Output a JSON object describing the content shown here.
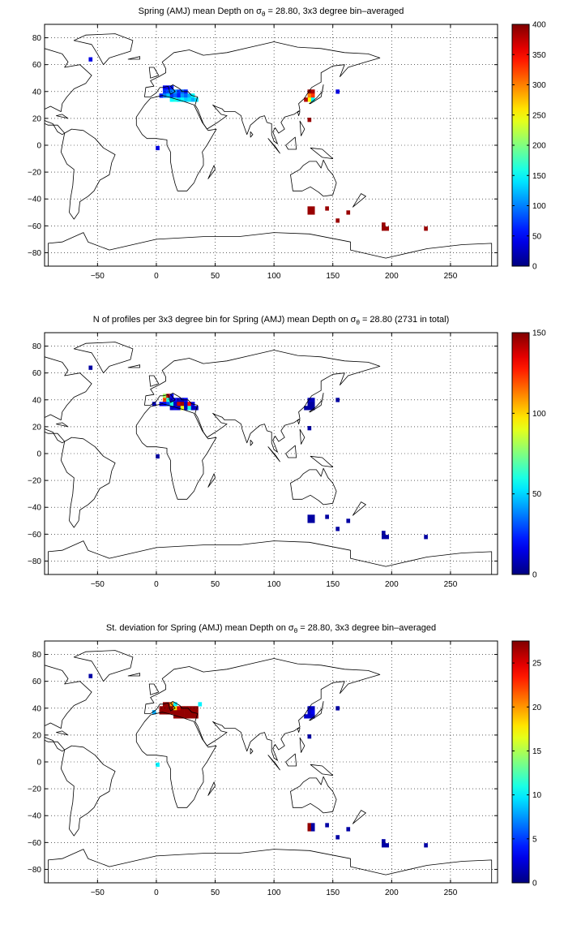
{
  "chart_data": [
    {
      "type": "heatmap",
      "title_parts": [
        "Spring (AMJ) mean Depth on ",
        "σ",
        "θ",
        " = 28.80, 3x3 degree bin–averaged"
      ],
      "xlim": [
        -95,
        290
      ],
      "ylim": [
        -90,
        90
      ],
      "xticks": [
        -50,
        0,
        50,
        100,
        150,
        200,
        250
      ],
      "yticks": [
        80,
        60,
        40,
        20,
        0,
        -20,
        -40,
        -60,
        -80
      ],
      "grid": true,
      "colormap": "jet",
      "colorbar": {
        "min": 0,
        "max": 400,
        "ticks": [
          0,
          50,
          100,
          150,
          200,
          250,
          300,
          350,
          400
        ]
      },
      "cells": [
        {
          "x": -56,
          "y": 64,
          "v": 40
        },
        {
          "x": 1,
          "y": -2,
          "v": 40
        },
        {
          "x": 4,
          "y": 37,
          "v": 60
        },
        {
          "x": 7,
          "y": 43,
          "v": 50
        },
        {
          "x": 7,
          "y": 40,
          "v": 70
        },
        {
          "x": 7,
          "y": 37,
          "v": 100
        },
        {
          "x": 10,
          "y": 43,
          "v": 45
        },
        {
          "x": 10,
          "y": 40,
          "v": 80
        },
        {
          "x": 10,
          "y": 37,
          "v": 130
        },
        {
          "x": 13,
          "y": 43,
          "v": 60
        },
        {
          "x": 13,
          "y": 40,
          "v": 100
        },
        {
          "x": 13,
          "y": 37,
          "v": 70
        },
        {
          "x": 13,
          "y": 34,
          "v": 150
        },
        {
          "x": 16,
          "y": 40,
          "v": 110
        },
        {
          "x": 16,
          "y": 37,
          "v": 90
        },
        {
          "x": 16,
          "y": 34,
          "v": 160
        },
        {
          "x": 19,
          "y": 40,
          "v": 70
        },
        {
          "x": 19,
          "y": 37,
          "v": 60
        },
        {
          "x": 19,
          "y": 34,
          "v": 140
        },
        {
          "x": 22,
          "y": 40,
          "v": 90
        },
        {
          "x": 22,
          "y": 37,
          "v": 110
        },
        {
          "x": 22,
          "y": 34,
          "v": 150
        },
        {
          "x": 25,
          "y": 40,
          "v": 60
        },
        {
          "x": 25,
          "y": 37,
          "v": 90
        },
        {
          "x": 25,
          "y": 34,
          "v": 130
        },
        {
          "x": 28,
          "y": 37,
          "v": 120
        },
        {
          "x": 28,
          "y": 34,
          "v": 140
        },
        {
          "x": 31,
          "y": 37,
          "v": 150
        },
        {
          "x": 31,
          "y": 34,
          "v": 120
        },
        {
          "x": 34,
          "y": 34,
          "v": 140
        },
        {
          "x": 130,
          "y": 40,
          "v": 390
        },
        {
          "x": 130,
          "y": 37,
          "v": 300
        },
        {
          "x": 130,
          "y": 34,
          "v": 250
        },
        {
          "x": 133,
          "y": 40,
          "v": 380
        },
        {
          "x": 133,
          "y": 37,
          "v": 330
        },
        {
          "x": 133,
          "y": 34,
          "v": 150
        },
        {
          "x": 127,
          "y": 34,
          "v": 380
        },
        {
          "x": 130,
          "y": 19,
          "v": 390
        },
        {
          "x": 154,
          "y": 40,
          "v": 40
        },
        {
          "x": 130,
          "y": -47,
          "v": 390
        },
        {
          "x": 133,
          "y": -47,
          "v": 390
        },
        {
          "x": 130,
          "y": -50,
          "v": 390
        },
        {
          "x": 133,
          "y": -50,
          "v": 390
        },
        {
          "x": 145,
          "y": -47,
          "v": 390
        },
        {
          "x": 154,
          "y": -56,
          "v": 390
        },
        {
          "x": 163,
          "y": -50,
          "v": 390
        },
        {
          "x": 193,
          "y": -59,
          "v": 390
        },
        {
          "x": 193,
          "y": -62,
          "v": 390
        },
        {
          "x": 196,
          "y": -62,
          "v": 390
        },
        {
          "x": 229,
          "y": -62,
          "v": 390
        }
      ]
    },
    {
      "type": "heatmap",
      "title_parts": [
        "N of profiles per 3x3 degree bin for Spring (AMJ) mean Depth on ",
        "σ",
        "θ",
        " = 28.80 (2731 in total)"
      ],
      "xlim": [
        -95,
        290
      ],
      "ylim": [
        -90,
        90
      ],
      "xticks": [
        -50,
        0,
        50,
        100,
        150,
        200,
        250
      ],
      "yticks": [
        80,
        60,
        40,
        20,
        0,
        -20,
        -40,
        -60,
        -80
      ],
      "grid": true,
      "colormap": "jet",
      "colorbar": {
        "min": 0,
        "max": 150,
        "ticks": [
          0,
          50,
          100,
          150
        ]
      },
      "cells": [
        {
          "x": -56,
          "y": 64,
          "v": 5
        },
        {
          "x": 1,
          "y": -2,
          "v": 5
        },
        {
          "x": 4,
          "y": 37,
          "v": 15
        },
        {
          "x": -2,
          "y": 37,
          "v": 10
        },
        {
          "x": 7,
          "y": 43,
          "v": 80
        },
        {
          "x": 7,
          "y": 40,
          "v": 120
        },
        {
          "x": 7,
          "y": 37,
          "v": 20
        },
        {
          "x": 10,
          "y": 43,
          "v": 140
        },
        {
          "x": 10,
          "y": 40,
          "v": 60
        },
        {
          "x": 10,
          "y": 37,
          "v": 30
        },
        {
          "x": 13,
          "y": 43,
          "v": 20
        },
        {
          "x": 13,
          "y": 40,
          "v": 10
        },
        {
          "x": 13,
          "y": 37,
          "v": 60
        },
        {
          "x": 13,
          "y": 34,
          "v": 10
        },
        {
          "x": 16,
          "y": 40,
          "v": 20
        },
        {
          "x": 16,
          "y": 37,
          "v": 10
        },
        {
          "x": 16,
          "y": 34,
          "v": 15
        },
        {
          "x": 19,
          "y": 40,
          "v": 10
        },
        {
          "x": 19,
          "y": 37,
          "v": 140
        },
        {
          "x": 19,
          "y": 34,
          "v": 10
        },
        {
          "x": 22,
          "y": 40,
          "v": 10
        },
        {
          "x": 22,
          "y": 37,
          "v": 145
        },
        {
          "x": 22,
          "y": 34,
          "v": 90
        },
        {
          "x": 25,
          "y": 40,
          "v": 20
        },
        {
          "x": 25,
          "y": 37,
          "v": 10
        },
        {
          "x": 25,
          "y": 34,
          "v": 10
        },
        {
          "x": 28,
          "y": 37,
          "v": 130
        },
        {
          "x": 28,
          "y": 34,
          "v": 60
        },
        {
          "x": 31,
          "y": 37,
          "v": 15
        },
        {
          "x": 31,
          "y": 34,
          "v": 10
        },
        {
          "x": 34,
          "y": 34,
          "v": 10
        },
        {
          "x": 130,
          "y": 40,
          "v": 10
        },
        {
          "x": 130,
          "y": 37,
          "v": 5
        },
        {
          "x": 130,
          "y": 34,
          "v": 5
        },
        {
          "x": 133,
          "y": 40,
          "v": 10
        },
        {
          "x": 133,
          "y": 37,
          "v": 5
        },
        {
          "x": 133,
          "y": 34,
          "v": 5
        },
        {
          "x": 127,
          "y": 34,
          "v": 5
        },
        {
          "x": 130,
          "y": 19,
          "v": 5
        },
        {
          "x": 154,
          "y": 40,
          "v": 5
        },
        {
          "x": 130,
          "y": -47,
          "v": 5
        },
        {
          "x": 133,
          "y": -47,
          "v": 5
        },
        {
          "x": 130,
          "y": -50,
          "v": 5
        },
        {
          "x": 133,
          "y": -50,
          "v": 5
        },
        {
          "x": 145,
          "y": -47,
          "v": 5
        },
        {
          "x": 154,
          "y": -56,
          "v": 5
        },
        {
          "x": 163,
          "y": -50,
          "v": 5
        },
        {
          "x": 193,
          "y": -59,
          "v": 5
        },
        {
          "x": 193,
          "y": -62,
          "v": 5
        },
        {
          "x": 196,
          "y": -62,
          "v": 5
        },
        {
          "x": 229,
          "y": -62,
          "v": 5
        }
      ]
    },
    {
      "type": "heatmap",
      "title_parts": [
        "St. deviation for Spring (AMJ) mean Depth on ",
        "σ",
        "θ",
        " = 28.80, 3x3 degree bin–averaged"
      ],
      "xlim": [
        -95,
        290
      ],
      "ylim": [
        -90,
        90
      ],
      "xticks": [
        -50,
        0,
        50,
        100,
        150,
        200,
        250
      ],
      "yticks": [
        80,
        60,
        40,
        20,
        0,
        -20,
        -40,
        -60,
        -80
      ],
      "grid": true,
      "colormap": "jet",
      "colorbar": {
        "min": 0,
        "max": 27.5,
        "ticks": [
          0,
          5,
          10,
          15,
          20,
          25
        ]
      },
      "cells": [
        {
          "x": -56,
          "y": 64,
          "v": 1
        },
        {
          "x": 1,
          "y": -2,
          "v": 10
        },
        {
          "x": -2,
          "y": 37,
          "v": 8
        },
        {
          "x": 4,
          "y": 37,
          "v": 27
        },
        {
          "x": 4,
          "y": 40,
          "v": 27
        },
        {
          "x": 7,
          "y": 43,
          "v": 27
        },
        {
          "x": 7,
          "y": 40,
          "v": 27
        },
        {
          "x": 7,
          "y": 37,
          "v": 27
        },
        {
          "x": 10,
          "y": 43,
          "v": 27
        },
        {
          "x": 10,
          "y": 40,
          "v": 27
        },
        {
          "x": 10,
          "y": 37,
          "v": 27
        },
        {
          "x": 13,
          "y": 43,
          "v": 20
        },
        {
          "x": 13,
          "y": 40,
          "v": 27
        },
        {
          "x": 13,
          "y": 37,
          "v": 27
        },
        {
          "x": 16,
          "y": 43,
          "v": 10
        },
        {
          "x": 16,
          "y": 40,
          "v": 18
        },
        {
          "x": 16,
          "y": 37,
          "v": 27
        },
        {
          "x": 16,
          "y": 34,
          "v": 27
        },
        {
          "x": 19,
          "y": 40,
          "v": 25
        },
        {
          "x": 19,
          "y": 37,
          "v": 27
        },
        {
          "x": 19,
          "y": 34,
          "v": 27
        },
        {
          "x": 22,
          "y": 40,
          "v": 27
        },
        {
          "x": 22,
          "y": 37,
          "v": 27
        },
        {
          "x": 22,
          "y": 34,
          "v": 27
        },
        {
          "x": 25,
          "y": 40,
          "v": 27
        },
        {
          "x": 25,
          "y": 37,
          "v": 27
        },
        {
          "x": 25,
          "y": 34,
          "v": 27
        },
        {
          "x": 28,
          "y": 40,
          "v": 27
        },
        {
          "x": 28,
          "y": 37,
          "v": 27
        },
        {
          "x": 28,
          "y": 34,
          "v": 27
        },
        {
          "x": 31,
          "y": 40,
          "v": 27
        },
        {
          "x": 31,
          "y": 37,
          "v": 27
        },
        {
          "x": 31,
          "y": 34,
          "v": 27
        },
        {
          "x": 34,
          "y": 40,
          "v": 27
        },
        {
          "x": 34,
          "y": 37,
          "v": 27
        },
        {
          "x": 34,
          "y": 34,
          "v": 27
        },
        {
          "x": 37,
          "y": 43,
          "v": 10
        },
        {
          "x": 130,
          "y": 40,
          "v": 2
        },
        {
          "x": 130,
          "y": 37,
          "v": 2
        },
        {
          "x": 130,
          "y": 34,
          "v": 2
        },
        {
          "x": 133,
          "y": 40,
          "v": 2
        },
        {
          "x": 133,
          "y": 37,
          "v": 3
        },
        {
          "x": 133,
          "y": 34,
          "v": 2
        },
        {
          "x": 127,
          "y": 34,
          "v": 2
        },
        {
          "x": 130,
          "y": 19,
          "v": 1
        },
        {
          "x": 154,
          "y": 40,
          "v": 1
        },
        {
          "x": 130,
          "y": -47,
          "v": 27
        },
        {
          "x": 133,
          "y": -47,
          "v": 1
        },
        {
          "x": 130,
          "y": -50,
          "v": 27
        },
        {
          "x": 133,
          "y": -50,
          "v": 1
        },
        {
          "x": 145,
          "y": -47,
          "v": 1
        },
        {
          "x": 154,
          "y": -56,
          "v": 1
        },
        {
          "x": 163,
          "y": -50,
          "v": 1
        },
        {
          "x": 193,
          "y": -59,
          "v": 1
        },
        {
          "x": 193,
          "y": -62,
          "v": 1
        },
        {
          "x": 196,
          "y": -62,
          "v": 1
        },
        {
          "x": 229,
          "y": -62,
          "v": 1
        }
      ]
    }
  ]
}
